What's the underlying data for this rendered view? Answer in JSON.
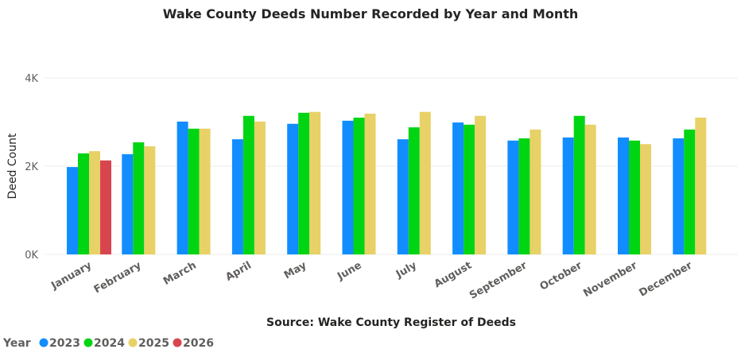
{
  "chart_data": {
    "type": "bar",
    "title": "Wake County Deeds Number Recorded by Year and Month",
    "xlabel": "Source: Wake County Register of Deeds",
    "ylabel": "Deed Count",
    "ylim": [
      0,
      4000
    ],
    "yticks": [
      0,
      2000,
      4000
    ],
    "ytick_labels": [
      "0K",
      "2K",
      "4K"
    ],
    "grid": true,
    "legend": {
      "title": "Year",
      "placement": "bottom-left"
    },
    "categories": [
      "January",
      "February",
      "March",
      "April",
      "May",
      "June",
      "July",
      "August",
      "September",
      "October",
      "November",
      "December"
    ],
    "series": [
      {
        "name": "2023",
        "color": "#118DFF",
        "values": [
          1980,
          2270,
          3010,
          2610,
          2960,
          3030,
          2610,
          2990,
          2580,
          2650,
          2650,
          2630
        ]
      },
      {
        "name": "2024",
        "color": "#00D514",
        "values": [
          2290,
          2540,
          2850,
          3140,
          3210,
          3100,
          2880,
          2940,
          2630,
          3140,
          2580,
          2830
        ]
      },
      {
        "name": "2025",
        "color": "#E8D166",
        "values": [
          2340,
          2450,
          2850,
          3010,
          3230,
          3190,
          3230,
          3140,
          2830,
          2940,
          2500,
          3100
        ]
      },
      {
        "name": "2026",
        "color": "#D9454F",
        "values": [
          2130,
          null,
          null,
          null,
          null,
          null,
          null,
          null,
          null,
          null,
          null,
          null
        ]
      }
    ]
  }
}
